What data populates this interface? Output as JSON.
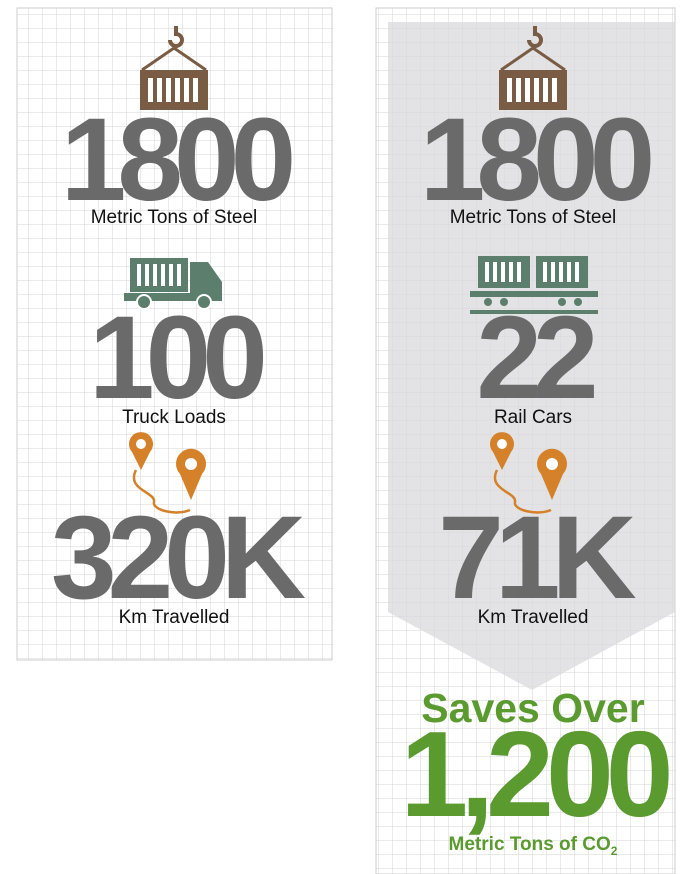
{
  "left": {
    "items": [
      {
        "value": "1800",
        "label": "Metric Tons of Steel"
      },
      {
        "value": "100",
        "label": "Truck Loads"
      },
      {
        "value": "320K",
        "label": "Km Travelled"
      }
    ]
  },
  "right": {
    "items": [
      {
        "value": "1800",
        "label": "Metric Tons of Steel"
      },
      {
        "value": "22",
        "label": "Rail Cars"
      },
      {
        "value": "71K",
        "label": "Km Travelled"
      }
    ],
    "result": {
      "headline": "Saves Over",
      "value": "1,200",
      "label": "Metric Tons of CO",
      "subscript": "2"
    }
  }
}
